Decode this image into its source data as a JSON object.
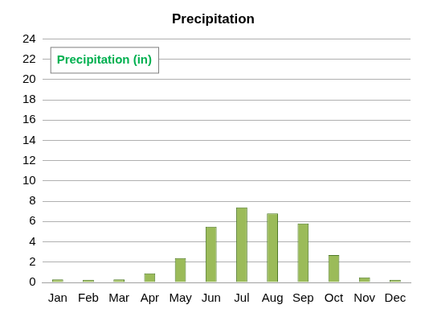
{
  "chart_data": {
    "type": "bar",
    "title": "Precipitation",
    "categories": [
      "Jan",
      "Feb",
      "Mar",
      "Apr",
      "May",
      "Jun",
      "Jul",
      "Aug",
      "Sep",
      "Oct",
      "Nov",
      "Dec"
    ],
    "series": [
      {
        "name": "Precipitation (in)",
        "color": "#9bbb59",
        "values": [
          0.3,
          0.25,
          0.3,
          0.9,
          2.4,
          5.5,
          7.4,
          6.8,
          5.8,
          2.7,
          0.5,
          0.25
        ]
      }
    ],
    "ylim": [
      0,
      24
    ],
    "yticks": [
      0,
      2,
      4,
      6,
      8,
      10,
      12,
      14,
      16,
      18,
      20,
      22,
      24
    ],
    "grid": true,
    "legend": "top left"
  }
}
